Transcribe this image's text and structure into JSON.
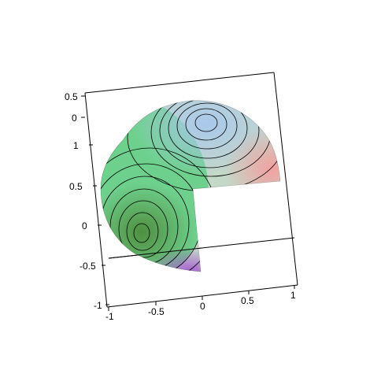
{
  "chart_data": {
    "type": "surface",
    "title": "",
    "surface": {
      "shape": "sphere with one quarter cut out",
      "contour_lines": true,
      "colors": {
        "green": "#5fcf83",
        "dark_green": "#4f8f3f",
        "blue": "#a9c8ec",
        "pink": "#f2a0a0",
        "purple": "#a85fd0",
        "contour": "#000000"
      }
    },
    "axes": {
      "x": {
        "range": [
          -1,
          1
        ],
        "ticks": [
          "-1",
          "-0.5",
          "0",
          "0.5",
          "1"
        ]
      },
      "y": {
        "range": [
          -1,
          1
        ],
        "ticks": [
          "-1",
          "-0.5",
          "0",
          "0.5",
          "1"
        ]
      },
      "z": {
        "range": [
          0,
          0.5
        ],
        "ticks": [
          "0",
          "0.5"
        ]
      }
    },
    "box": true,
    "grid": false,
    "legend": "none"
  }
}
